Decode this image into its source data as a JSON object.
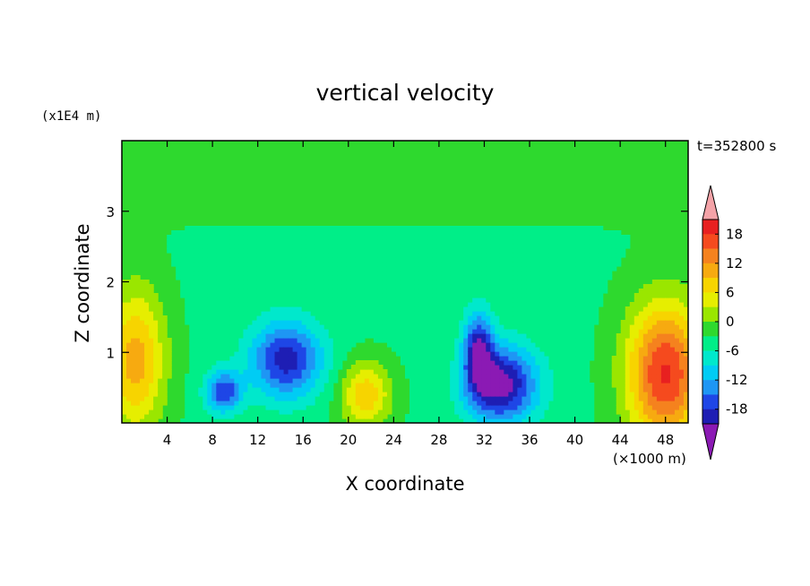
{
  "chart_data": {
    "type": "heatmap",
    "title": "vertical velocity",
    "xlabel": "X coordinate",
    "ylabel": "Z coordinate",
    "x_unit": "(×1000 m)",
    "y_unit": "(x1E4 m)",
    "time_label": "t=352800 s",
    "xlim": [
      0,
      50
    ],
    "ylim": [
      0,
      4
    ],
    "x_ticks": [
      4,
      8,
      12,
      16,
      20,
      24,
      28,
      32,
      36,
      40,
      44,
      48
    ],
    "y_ticks": [
      1,
      2,
      3
    ],
    "colorbar": {
      "tick_labels": [
        18,
        12,
        6,
        0,
        -6,
        -12,
        -18
      ],
      "levels_top_to_bottom": [
        {
          "min": 21,
          "color": "#f4a3a8"
        },
        {
          "min": 18,
          "max": 21,
          "color": "#e82020"
        },
        {
          "min": 15,
          "max": 18,
          "color": "#f54a1e"
        },
        {
          "min": 12,
          "max": 15,
          "color": "#f5821e"
        },
        {
          "min": 9,
          "max": 12,
          "color": "#f7aa10"
        },
        {
          "min": 6,
          "max": 9,
          "color": "#f7d400"
        },
        {
          "min": 3,
          "max": 6,
          "color": "#e6ee00"
        },
        {
          "min": 0,
          "max": 3,
          "color": "#9ae600"
        },
        {
          "min": -3,
          "max": 0,
          "color": "#2ed92e"
        },
        {
          "min": -6,
          "max": -3,
          "color": "#00ee88"
        },
        {
          "min": -9,
          "max": -6,
          "color": "#00e8cc"
        },
        {
          "min": -12,
          "max": -9,
          "color": "#00ccf4"
        },
        {
          "min": -15,
          "max": -12,
          "color": "#1e96f4"
        },
        {
          "min": -18,
          "max": -15,
          "color": "#1e46e6"
        },
        {
          "min": -21,
          "max": -18,
          "color": "#1e1eb4"
        },
        {
          "max": -21,
          "color": "#8b1ab4"
        }
      ]
    },
    "features": [
      {
        "x": 1.2,
        "z": 0.9,
        "peak": 14,
        "sx": 2.6,
        "sz": 1.0
      },
      {
        "x": 48.0,
        "z": 0.7,
        "peak": 22,
        "sx": 3.4,
        "sz": 1.0
      },
      {
        "x": 21.5,
        "z": 0.4,
        "peak": 12,
        "sx": 2.2,
        "sz": 0.45
      },
      {
        "x": 33.5,
        "z": 0.55,
        "peak": -19,
        "sx": 3.2,
        "sz": 0.55
      },
      {
        "x": 31.5,
        "z": 1.05,
        "peak": -15,
        "sx": 1.3,
        "sz": 0.55
      },
      {
        "x": 14.5,
        "z": 0.9,
        "peak": -16,
        "sx": 3.2,
        "sz": 0.55
      },
      {
        "x": 9.0,
        "z": 0.45,
        "peak": -14,
        "sx": 1.6,
        "sz": 0.3
      }
    ]
  }
}
